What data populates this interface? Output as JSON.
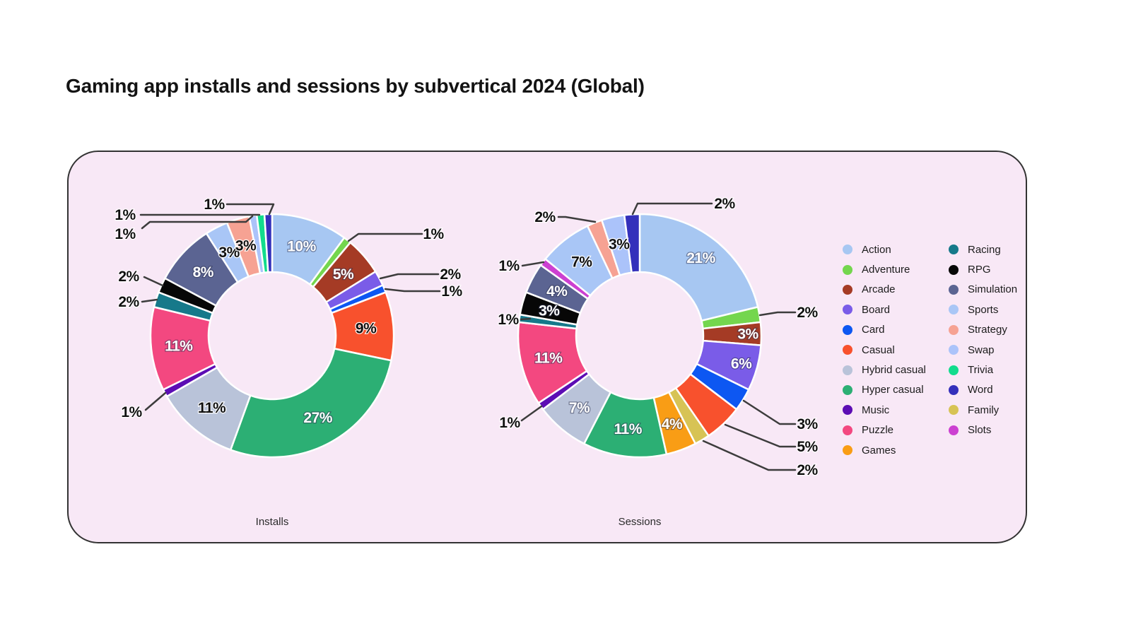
{
  "title": "Gaming app installs and sessions by subvertical 2024 (Global)",
  "colors": {
    "Action": "#A7C7F2",
    "Adventure": "#74D64E",
    "Arcade": "#A53B25",
    "Board": "#7A5CE8",
    "Card": "#0D57F2",
    "Casual": "#F8512D",
    "Hybrid casual": "#B9C3D9",
    "Hyper casual": "#2CAF74",
    "Music": "#5C0DB4",
    "Puzzle": "#F34880",
    "Games": "#F99D15",
    "Racing": "#16798A",
    "RPG": "#070707",
    "Simulation": "#5B6492",
    "Sports": "#A9C6F6",
    "Strategy": "#F6A293",
    "Swap": "#ABC3FA",
    "Trivia": "#12DC8D",
    "Word": "#3430BB",
    "Family": "#D7C355",
    "Slots": "#CC40D1"
  },
  "chart_data": [
    {
      "type": "pie",
      "subtype": "donut",
      "title": "Installs",
      "units": "%",
      "slices": [
        {
          "name": "Action",
          "value": 10,
          "label": "10%",
          "label_mode": "in",
          "label_color": "white"
        },
        {
          "name": "Adventure",
          "value": 1,
          "label": "1%",
          "label_mode": "out"
        },
        {
          "name": "Arcade",
          "value": 5,
          "label": "5%",
          "label_mode": "in",
          "label_color": "white"
        },
        {
          "name": "Board",
          "value": 2,
          "label": "2%",
          "label_mode": "out"
        },
        {
          "name": "Card",
          "value": 1,
          "label": "1%",
          "label_mode": "out"
        },
        {
          "name": "Casual",
          "value": 9,
          "label": "9%",
          "label_mode": "in",
          "label_color": "dark"
        },
        {
          "name": "Hyper casual",
          "value": 27,
          "label": "27%",
          "label_mode": "in",
          "label_color": "white"
        },
        {
          "name": "Hybrid casual",
          "value": 11,
          "label": "11%",
          "label_mode": "in",
          "label_color": "dark"
        },
        {
          "name": "Music",
          "value": 1,
          "label": "1%",
          "label_mode": "out"
        },
        {
          "name": "Puzzle",
          "value": 11,
          "label": "11%",
          "label_mode": "in",
          "label_color": "white"
        },
        {
          "name": "Racing",
          "value": 2,
          "label": "2%",
          "label_mode": "out"
        },
        {
          "name": "RPG",
          "value": 2,
          "label": "2%",
          "label_mode": "out"
        },
        {
          "name": "Simulation",
          "value": 8,
          "label": "8%",
          "label_mode": "in",
          "label_color": "white"
        },
        {
          "name": "Sports",
          "value": 3,
          "label": "3%",
          "label_mode": "in",
          "label_color": "dark"
        },
        {
          "name": "Strategy",
          "value": 3,
          "label": "3%",
          "label_mode": "in",
          "label_color": "dark"
        },
        {
          "name": "Swap",
          "value": 1,
          "label": "1%",
          "label_mode": "out"
        },
        {
          "name": "Trivia",
          "value": 1,
          "label": "1%",
          "label_mode": "out"
        },
        {
          "name": "Word",
          "value": 1,
          "label": "1%",
          "label_mode": "out"
        }
      ]
    },
    {
      "type": "pie",
      "subtype": "donut",
      "title": "Sessions",
      "units": "%",
      "slices": [
        {
          "name": "Action",
          "value": 21,
          "label": "21%",
          "label_mode": "in",
          "label_color": "white"
        },
        {
          "name": "Adventure",
          "value": 2,
          "label": "2%",
          "label_mode": "out"
        },
        {
          "name": "Arcade",
          "value": 3,
          "label": "3%",
          "label_mode": "in",
          "label_color": "white"
        },
        {
          "name": "Board",
          "value": 6,
          "label": "6%",
          "label_mode": "in",
          "label_color": "white"
        },
        {
          "name": "Card",
          "value": 3,
          "label": "3%",
          "label_mode": "out"
        },
        {
          "name": "Casual",
          "value": 5,
          "label": "5%",
          "label_mode": "out"
        },
        {
          "name": "Family",
          "value": 2,
          "label": "2%",
          "label_mode": "out"
        },
        {
          "name": "Games",
          "value": 4,
          "label": "4%",
          "label_mode": "in",
          "label_color": "white"
        },
        {
          "name": "Hyper casual",
          "value": 11,
          "label": "11%",
          "label_mode": "in",
          "label_color": "white"
        },
        {
          "name": "Hybrid casual",
          "value": 7,
          "label": "7%",
          "label_mode": "in",
          "label_color": "white"
        },
        {
          "name": "Music",
          "value": 1,
          "label": "1%",
          "label_mode": "out"
        },
        {
          "name": "Puzzle",
          "value": 11,
          "label": "11%",
          "label_mode": "in",
          "label_color": "white"
        },
        {
          "name": "Racing",
          "value": 1,
          "label": "1%",
          "label_mode": "out"
        },
        {
          "name": "RPG",
          "value": 3,
          "label": "3%",
          "label_mode": "in",
          "label_color": "white"
        },
        {
          "name": "Simulation",
          "value": 4,
          "label": "4%",
          "label_mode": "in",
          "label_color": "white"
        },
        {
          "name": "Slots",
          "value": 1,
          "label": "1%",
          "label_mode": "out"
        },
        {
          "name": "Sports",
          "value": 7,
          "label": "7%",
          "label_mode": "in",
          "label_color": "dark"
        },
        {
          "name": "Strategy",
          "value": 2,
          "label": "2%",
          "label_mode": "out"
        },
        {
          "name": "Swap",
          "value": 3,
          "label": "3%",
          "label_mode": "in",
          "label_color": "dark"
        },
        {
          "name": "Word",
          "value": 2,
          "label": "2%",
          "label_mode": "out"
        }
      ]
    }
  ],
  "legend": {
    "columns": [
      [
        "Action",
        "Adventure",
        "Arcade",
        "Board",
        "Card",
        "Casual",
        "Hybrid casual",
        "Hyper casual",
        "Music",
        "Puzzle",
        "Games"
      ],
      [
        "Racing",
        "RPG",
        "Simulation",
        "Sports",
        "Strategy",
        "Swap",
        "Trivia",
        "Word",
        "Family",
        "Slots"
      ]
    ]
  }
}
